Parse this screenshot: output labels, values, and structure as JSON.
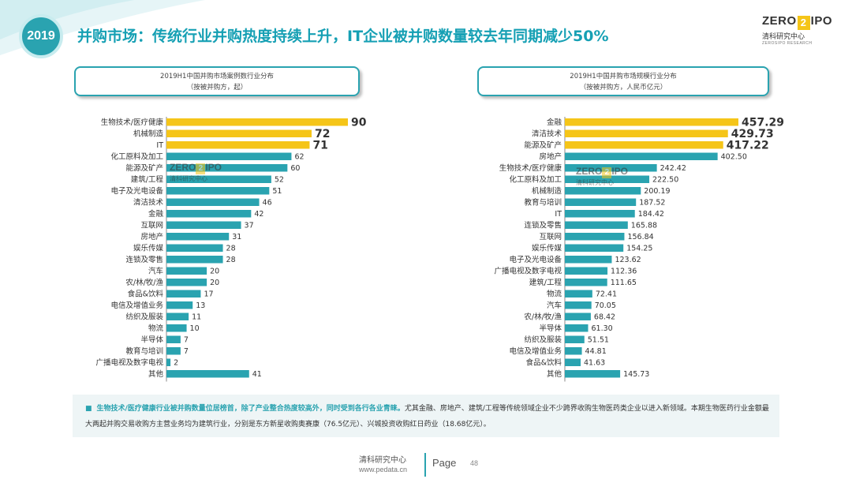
{
  "header": {
    "year": "2019",
    "title": "并购市场：传统行业并购热度持续上升，IT企业被并购数量较去年同期减少50%",
    "logo": {
      "left": "ZERO",
      "mark": "2",
      "right": "IPO",
      "sub": "清科研究中心",
      "sub2": "ZEROSIPO RESEARCH"
    }
  },
  "watermark": {
    "left": "ZERO",
    "mark": "2",
    "right": "IPO",
    "sub": "清科研究中心"
  },
  "colors": {
    "accent": "#2aa3b0",
    "highlight": "#f5c518",
    "bar": "#2aa3b0"
  },
  "chart_data": [
    {
      "type": "bar",
      "orientation": "horizontal",
      "title_line1": "2019H1中国并购市场案例数行业分布",
      "title_line2": "（按被并购方，起）",
      "categories": [
        "生物技术/医疗健康",
        "机械制造",
        "IT",
        "化工原料及加工",
        "能源及矿产",
        "建筑/工程",
        "电子及光电设备",
        "清洁技术",
        "金融",
        "互联网",
        "房地产",
        "娱乐传媒",
        "连锁及零售",
        "汽车",
        "农/林/牧/渔",
        "食品&饮料",
        "电信及增值业务",
        "纺织及服装",
        "物流",
        "半导体",
        "教育与培训",
        "广播电视及数字电视",
        "其他"
      ],
      "values": [
        90,
        72,
        71,
        62,
        60,
        52,
        51,
        46,
        42,
        37,
        31,
        28,
        28,
        20,
        20,
        17,
        13,
        11,
        10,
        7,
        7,
        2,
        41
      ],
      "value_labels": [
        "90",
        "72",
        "71",
        "62",
        "60",
        "52",
        "51",
        "46",
        "42",
        "37",
        "31",
        "28",
        "28",
        "20",
        "20",
        "17",
        "13",
        "11",
        "10",
        "7",
        "7",
        "2",
        "41"
      ],
      "highlight_top": 3,
      "xlim": [
        0,
        90
      ]
    },
    {
      "type": "bar",
      "orientation": "horizontal",
      "title_line1": "2019H1中国并购市场规模行业分布",
      "title_line2": "（按被并购方，人民币亿元）",
      "categories": [
        "金融",
        "清洁技术",
        "能源及矿产",
        "房地产",
        "生物技术/医疗健康",
        "化工原料及加工",
        "机械制造",
        "教育与培训",
        "IT",
        "连锁及零售",
        "互联网",
        "娱乐传媒",
        "电子及光电设备",
        "广播电视及数字电视",
        "建筑/工程",
        "物流",
        "汽车",
        "农/林/牧/渔",
        "半导体",
        "纺织及服装",
        "电信及增值业务",
        "食品&饮料",
        "其他"
      ],
      "values": [
        457.29,
        429.73,
        417.22,
        402.5,
        242.42,
        222.5,
        200.19,
        187.52,
        184.42,
        165.88,
        156.84,
        154.25,
        123.62,
        112.36,
        111.65,
        72.41,
        70.05,
        68.42,
        61.3,
        51.51,
        44.81,
        41.63,
        145.73
      ],
      "value_labels": [
        "457.29",
        "429.73",
        "417.22",
        "402.50",
        "242.42",
        "222.50",
        "200.19",
        "187.52",
        "184.42",
        "165.88",
        "156.84",
        "154.25",
        "123.62",
        "112.36",
        "111.65",
        "72.41",
        "70.05",
        "68.42",
        "61.30",
        "51.51",
        "44.81",
        "41.63",
        "145.73"
      ],
      "highlight_top": 3,
      "xlim": [
        0,
        457.29
      ]
    }
  ],
  "summary": {
    "highlight": "生物技术/医疗健康行业被并购数量位居榜首，除了产业整合热度较高外，同时受到各行各业青睐。",
    "text": "尤其金融、房地产、建筑/工程等传统领域企业不少跨界收购生物医药类企业以进入新领域。本期生物医药行业金额最大两起并购交易收购方主营业务均为建筑行业，分别是东方新星收购奥赛康（76.5亿元）、兴城投资收购红日药业（18.68亿元）。"
  },
  "footer": {
    "name": "清科研究中心",
    "url": "www.pedata.cn",
    "page_label": "Page",
    "page_number": "48"
  }
}
